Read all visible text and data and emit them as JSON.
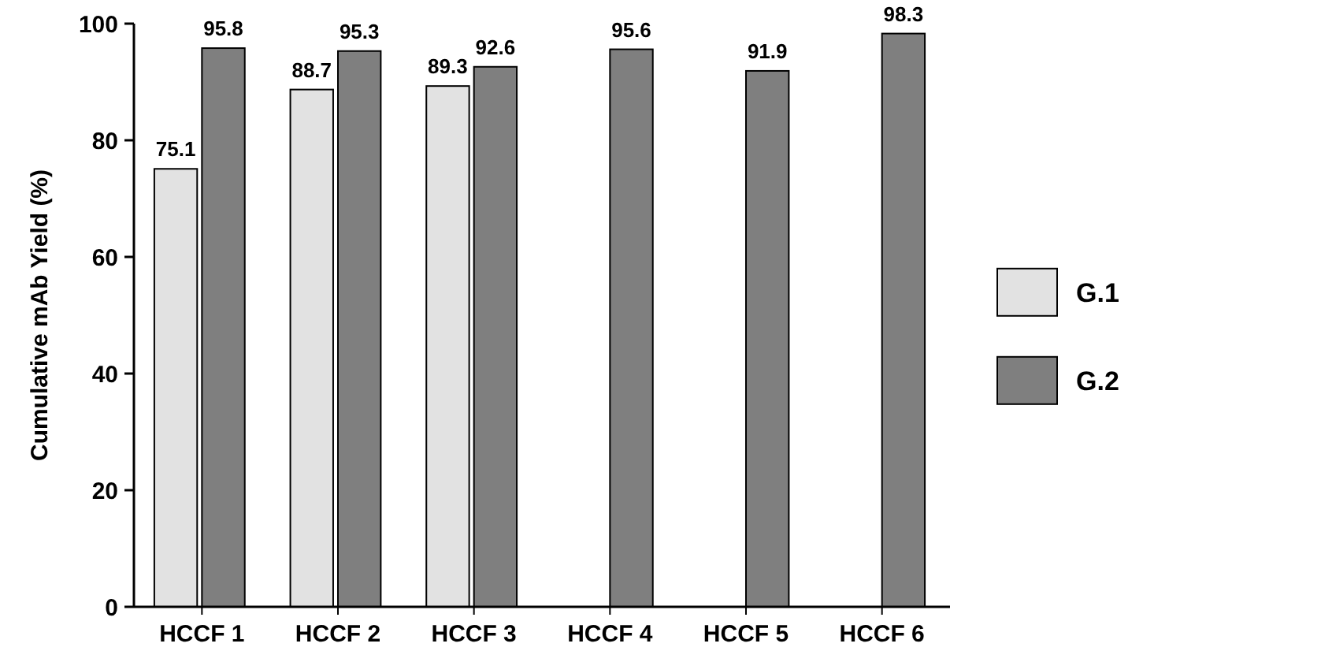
{
  "chart_data": {
    "type": "bar",
    "ylabel": "Cumulative mAb Yield (%)",
    "categories": [
      "HCCF 1",
      "HCCF 2",
      "HCCF 3",
      "HCCF 4",
      "HCCF 5",
      "HCCF 6"
    ],
    "series": [
      {
        "name": "G.1",
        "color": "#e2e2e2",
        "values": [
          75.1,
          88.7,
          89.3,
          null,
          null,
          null
        ]
      },
      {
        "name": "G.2",
        "color": "#7f7f7f",
        "values": [
          95.8,
          95.3,
          92.6,
          95.6,
          91.9,
          98.3
        ]
      }
    ],
    "ylim": [
      0,
      100
    ],
    "yticks": [
      0,
      20,
      40,
      60,
      80,
      100
    ],
    "grid": false,
    "legend": "right",
    "data_labels": true
  }
}
